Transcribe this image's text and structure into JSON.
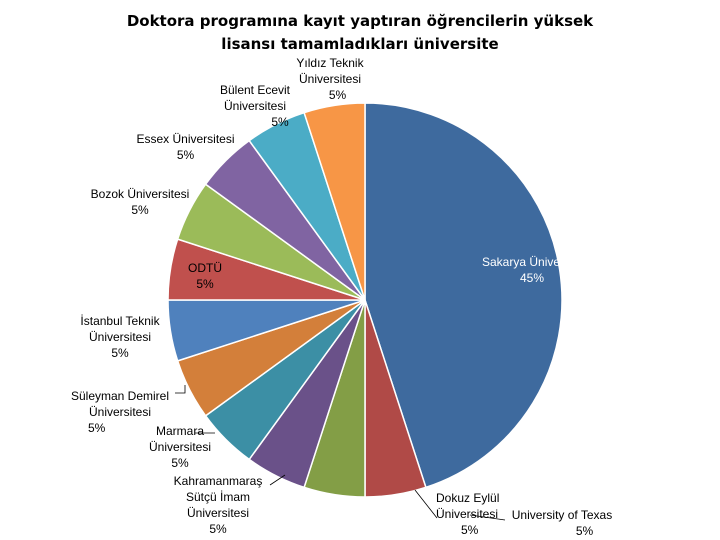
{
  "chart_data": {
    "type": "pie",
    "title": "Doktora programına kayıt yaptıran öğrencilerin yüksek lisansı tamamladıkları üniversite",
    "start_angle_deg": 0,
    "direction": "clockwise",
    "slices": [
      {
        "name": "Sakarya Üniversitesi",
        "value": 45,
        "pct_label": "45%",
        "color": "#3E6A9E"
      },
      {
        "name": "Dokuz Eylül Üniversitesi",
        "value": 5,
        "pct_label": "5%",
        "color": "#B04A47"
      },
      {
        "name": "University of Texas",
        "value": 5,
        "pct_label": "5%",
        "color": "#839E46"
      },
      {
        "name": "Kahramanmaraş Sütçü İmam Üniversitesi",
        "value": 5,
        "pct_label": "5%",
        "color": "#6A5189"
      },
      {
        "name": "Marmara Üniversitesi",
        "value": 5,
        "pct_label": "5%",
        "color": "#3C8FA5"
      },
      {
        "name": "Süleyman Demirel Üniversitesi",
        "value": 5,
        "pct_label": "5%",
        "color": "#D37F3A"
      },
      {
        "name": "İstanbul Teknik Üniversitesi",
        "value": 5,
        "pct_label": "5%",
        "color": "#4F81BD"
      },
      {
        "name": "ODTÜ",
        "value": 5,
        "pct_label": "5%",
        "color": "#C0504D"
      },
      {
        "name": "Bozok Üniversitesi",
        "value": 5,
        "pct_label": "5%",
        "color": "#9BBB59"
      },
      {
        "name": "Essex Üniversitesi",
        "value": 5,
        "pct_label": "5%",
        "color": "#8064A2"
      },
      {
        "name": "Bülent Ecevit Üniversitesi",
        "value": 5,
        "pct_label": "5%",
        "color": "#4BACC6"
      },
      {
        "name": "Yıldız Teknik Üniversitesi",
        "value": 5,
        "pct_label": "5%",
        "color": "#F79646"
      }
    ]
  }
}
